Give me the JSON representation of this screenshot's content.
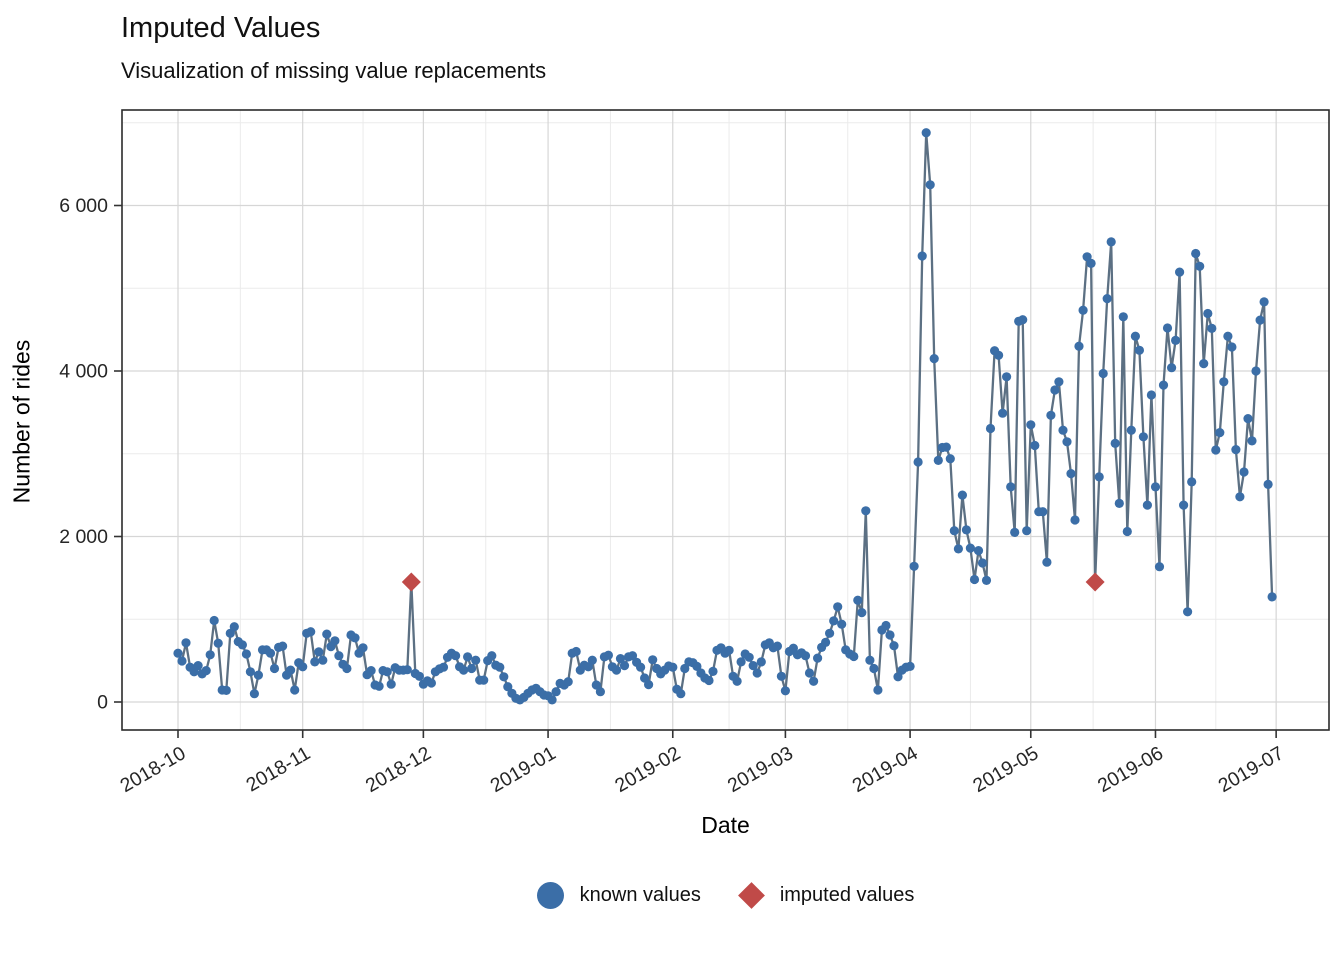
{
  "title": "Imputed Values",
  "subtitle": "Visualization of missing value replacements",
  "x_axis": {
    "label": "Date",
    "tick_labels": [
      "2018-10",
      "2018-11",
      "2018-12",
      "2019-01",
      "2019-02",
      "2019-03",
      "2019-04",
      "2019-05",
      "2019-06",
      "2019-07"
    ]
  },
  "y_axis": {
    "label": "Number of rides",
    "tick_labels": [
      "0",
      "2 000",
      "4 000",
      "6 000"
    ],
    "tick_values": [
      0,
      2000,
      4000,
      6000
    ],
    "minor_tick_values": [
      1000,
      3000,
      5000,
      7000
    ]
  },
  "legend": {
    "items": [
      {
        "label": "known values",
        "marker": "circle",
        "color": "#3b6ea7"
      },
      {
        "label": "imputed values",
        "marker": "diamond",
        "color": "#c04a48"
      }
    ]
  },
  "colors": {
    "known_point": "#3b6ea7",
    "imputed_point": "#c04a48",
    "line": "#5c7083",
    "grid_major": "#d6d6d6",
    "grid_minor": "#ebebeb",
    "panel_border": "#2b2b2b",
    "tick": "#333333",
    "tick_label": "#262626"
  },
  "chart_data": {
    "type": "line",
    "title": "Imputed Values",
    "subtitle": "Visualization of missing value replacements",
    "xlabel": "Date",
    "ylabel": "Number of rides",
    "frequency": "daily",
    "start_date": "2018-10-01",
    "end_date": "2019-06-29",
    "xlim": [
      "2018-10-01",
      "2019-07-01"
    ],
    "ylim": [
      0,
      7000
    ],
    "grid": true,
    "legend_position": "bottom",
    "month_day_offsets": [
      0,
      31,
      61,
      92,
      123,
      151,
      182,
      212,
      243,
      273
    ],
    "values": [
      590,
      495,
      715,
      420,
      365,
      440,
      340,
      380,
      570,
      985,
      710,
      145,
      140,
      830,
      910,
      730,
      690,
      580,
      365,
      100,
      325,
      630,
      630,
      590,
      405,
      660,
      675,
      325,
      385,
      145,
      475,
      425,
      830,
      850,
      485,
      605,
      505,
      820,
      670,
      740,
      560,
      455,
      405,
      810,
      775,
      590,
      655,
      330,
      380,
      205,
      190,
      380,
      365,
      215,
      415,
      385,
      385,
      390,
      1450,
      345,
      310,
      215,
      255,
      230,
      365,
      400,
      420,
      540,
      590,
      560,
      425,
      385,
      545,
      405,
      505,
      265,
      265,
      500,
      560,
      445,
      420,
      305,
      185,
      105,
      45,
      25,
      55,
      105,
      145,
      165,
      125,
      85,
      75,
      25,
      125,
      225,
      205,
      245,
      590,
      610,
      385,
      445,
      425,
      505,
      205,
      125,
      545,
      565,
      425,
      385,
      525,
      440,
      545,
      560,
      480,
      420,
      290,
      210,
      510,
      405,
      340,
      385,
      435,
      420,
      155,
      100,
      405,
      485,
      475,
      430,
      350,
      290,
      260,
      370,
      625,
      655,
      590,
      625,
      310,
      250,
      485,
      580,
      540,
      440,
      350,
      485,
      690,
      715,
      655,
      675,
      310,
      135,
      610,
      650,
      570,
      595,
      560,
      350,
      250,
      530,
      660,
      720,
      830,
      980,
      1150,
      940,
      630,
      580,
      550,
      1230,
      1080,
      2310,
      505,
      405,
      145,
      870,
      925,
      810,
      680,
      305,
      385,
      420,
      430,
      1640,
      2900,
      5390,
      6880,
      6250,
      4150,
      2920,
      3075,
      3080,
      2940,
      2070,
      1850,
      2500,
      2080,
      1860,
      1480,
      1830,
      1680,
      1470,
      3305,
      4245,
      4190,
      3490,
      3930,
      2600,
      2050,
      4600,
      4620,
      2070,
      3350,
      3100,
      2300,
      2300,
      1690,
      3465,
      3770,
      3870,
      3285,
      3145,
      2760,
      2200,
      4300,
      4735,
      5380,
      5300,
      1450,
      2720,
      3970,
      4875,
      5560,
      3125,
      2400,
      4655,
      2060,
      3285,
      4420,
      4250,
      3205,
      2380,
      3710,
      2600,
      1635,
      3830,
      4520,
      4040,
      4370,
      5195,
      2380,
      1090,
      2660,
      5420,
      5265,
      4090,
      4695,
      4515,
      3045,
      3255,
      3870,
      4420,
      4290,
      3050,
      2480,
      2780,
      3425,
      3155,
      4000,
      4615,
      4835,
      2630,
      1270
    ],
    "imputed": [
      {
        "date": "2018-11-28",
        "index": 58,
        "value": 1450
      },
      {
        "date": "2019-05-17",
        "index": 228,
        "value": 1450
      }
    ],
    "series": [
      {
        "name": "known values",
        "marker": "circle",
        "color": "#3b6ea7"
      },
      {
        "name": "imputed values",
        "marker": "diamond",
        "color": "#c04a48"
      }
    ]
  }
}
